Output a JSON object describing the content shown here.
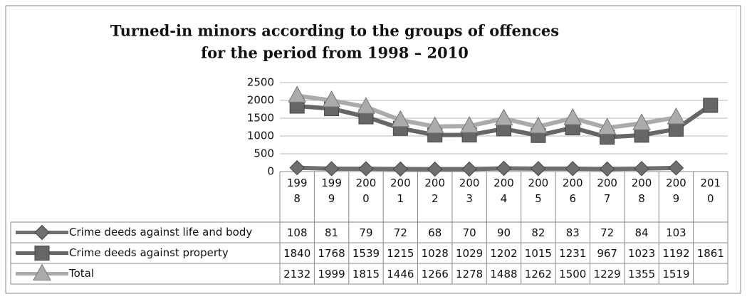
{
  "chart_data": {
    "type": "line",
    "title": "Turned-in minors according to the groups of offences",
    "subtitle": "for the period from 1998 – 2010",
    "categories": [
      "1998",
      "1999",
      "2000",
      "2001",
      "2002",
      "2003",
      "2004",
      "2005",
      "2006",
      "2007",
      "2008",
      "2009",
      "2010"
    ],
    "series": [
      {
        "name": "Crime deeds against life and body",
        "color": "#6f6f6f",
        "marker": "diamond",
        "values": [
          108,
          81,
          79,
          72,
          68,
          70,
          90,
          82,
          83,
          72,
          84,
          103,
          null
        ]
      },
      {
        "name": "Crime deeds against property",
        "color": "#666666",
        "marker": "square",
        "values": [
          1840,
          1768,
          1539,
          1215,
          1028,
          1029,
          1202,
          1015,
          1231,
          967,
          1023,
          1192,
          1861
        ]
      },
      {
        "name": "Total",
        "color": "#ababab",
        "marker": "triangle",
        "values": [
          2132,
          1999,
          1815,
          1446,
          1266,
          1278,
          1488,
          1262,
          1500,
          1229,
          1355,
          1519,
          null
        ]
      }
    ],
    "ylim": [
      0,
      2500
    ],
    "yticks": [
      0,
      500,
      1000,
      1500,
      2000,
      2500
    ],
    "grid": true,
    "data_table": true
  }
}
